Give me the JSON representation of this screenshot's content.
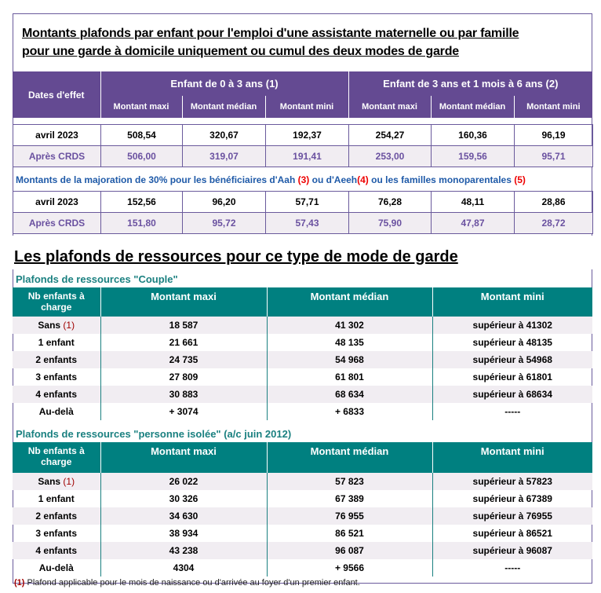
{
  "title1": "Montants plafonds par enfant pour l'emploi d'une assistante maternelle ou par famille",
  "title1b": "pour une garde à domicile uniquement ou cumul des deux modes de garde",
  "plafonds": {
    "col_dates": "Dates d'effet",
    "group1": "Enfant de 0 à 3 ans (1)",
    "group2": "Enfant de 3 ans et 1 mois à 6 ans (2)",
    "subcols": [
      "Montant maxi",
      "Montant médian",
      "Montant mini",
      "Montant maxi",
      "Montant médian",
      "Montant mini"
    ],
    "rows": [
      [
        "avril 2023",
        "508,54",
        "320,67",
        "192,37",
        "254,27",
        "160,36",
        "96,19"
      ],
      [
        "Après CRDS",
        "506,00",
        "319,07",
        "191,41",
        "253,00",
        "159,56",
        "95,71"
      ]
    ]
  },
  "majoration": {
    "text1": "Montants  de la majoration de 30% pour les bénéficiaires d'Aah ",
    "n3": "(3)",
    "text2": " ou d'Aeeh",
    "n4": "(4)",
    "text3": " ou les familles monoparentales ",
    "n5": "(5)",
    "rows": [
      [
        "avril 2023",
        "152,56",
        "96,20",
        "57,71",
        "76,28",
        "48,11",
        "28,86"
      ],
      [
        "Après CRDS",
        "151,80",
        "95,72",
        "57,43",
        "75,90",
        "47,87",
        "28,72"
      ]
    ]
  },
  "title2": "Les plafonds de ressources pour ce type de mode de garde",
  "couple": {
    "subtitle": "Plafonds de ressources \"Couple\"",
    "headers": [
      "Nb enfants à charge",
      "Montant maxi",
      "Montant médian",
      "Montant mini"
    ],
    "rows": [
      [
        "Sans",
        "18 587",
        "41 302",
        "supérieur à  41302"
      ],
      [
        "1 enfant",
        "21 661",
        "48 135",
        "supérieur à  48135"
      ],
      [
        "2 enfants",
        "24 735",
        "54 968",
        "supérieur à  54968"
      ],
      [
        "3 enfants",
        "27 809",
        "61 801",
        "supérieur à  61801"
      ],
      [
        "4 enfants",
        "30 883",
        "68 634",
        "supérieur à  68634"
      ],
      [
        "Au-delà",
        "+ 3074",
        "+ 6833",
        "-----"
      ]
    ]
  },
  "isolee": {
    "subtitle": "Plafonds de ressources \"personne isolée\" (a/c juin 2012)",
    "headers": [
      "Nb enfants à charge",
      "Montant maxi",
      "Montant médian",
      "Montant mini"
    ],
    "rows": [
      [
        "Sans",
        "26 022",
        "57 823",
        "supérieur à  57823"
      ],
      [
        "1 enfant",
        "30 326",
        "67 389",
        "supérieur à  67389"
      ],
      [
        "2 enfants",
        "34 630",
        "76 955",
        "supérieur à  76955"
      ],
      [
        "3 enfants",
        "38 934",
        "86 521",
        "supérieur à  86521"
      ],
      [
        "4 enfants",
        "43 238",
        "96 087",
        "supérieur à  96087"
      ],
      [
        "Au-delà",
        "4304",
        "+ 9566",
        "-----"
      ]
    ]
  },
  "sans_note": "(1)",
  "footnote": {
    "num": "(1)",
    "text": " Plafond applicable pour le mois de naissance ou d'arrivée au foyer d'un premier enfant."
  }
}
